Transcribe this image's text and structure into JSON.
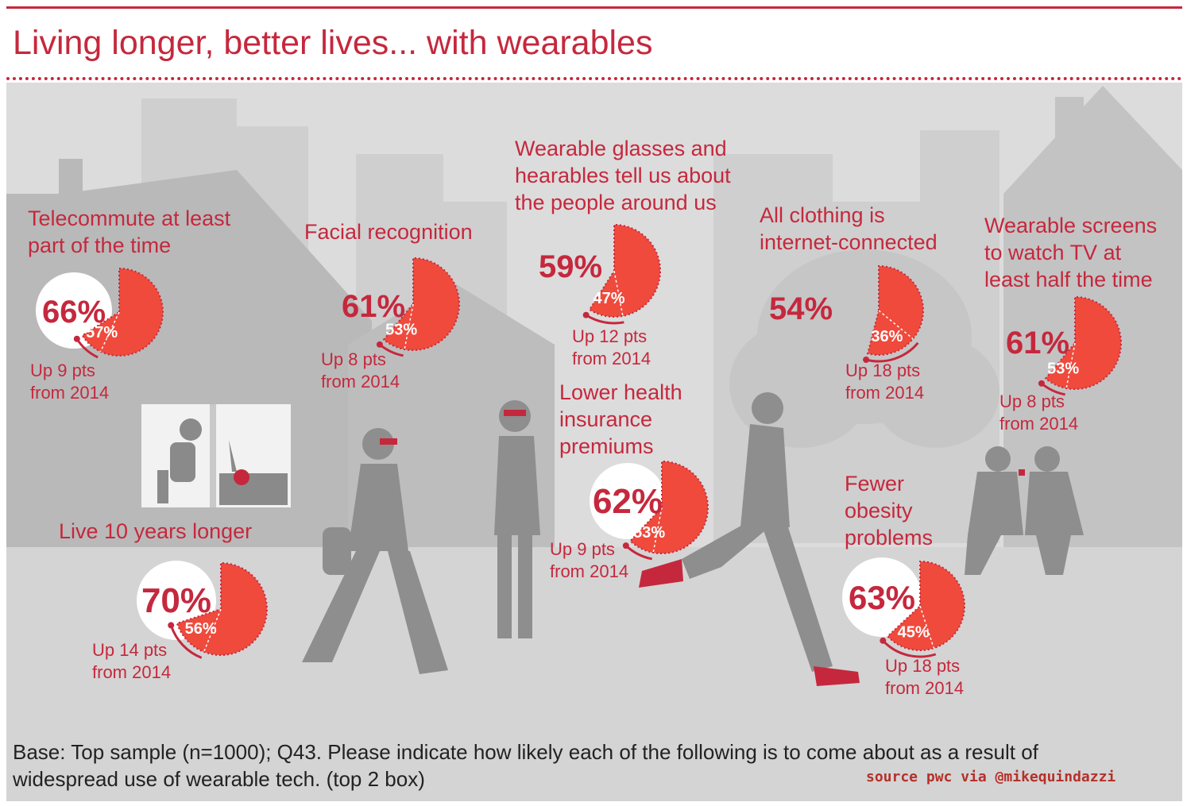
{
  "title": "Living longer, better lives... with wearables",
  "footnote": "Base: Top sample (n=1000); Q43. Please indicate how likely each of the following is to come about as a result of\nwidespread use of wearable tech. (top 2 box)",
  "source": "source pwc via @mikequindazzi",
  "colors": {
    "brand_red": "#c5283d",
    "pie_fill": "#ef4a3c",
    "background": "#dcdcdc",
    "silhouette": "#8e8e8e"
  },
  "chart_data": {
    "type": "pie",
    "comparison_year": "2014",
    "items": [
      {
        "label": "Telecommute at least\npart of the time",
        "current": 66,
        "previous": 57,
        "change_text": "Up 9 pts\nfrom 2014"
      },
      {
        "label": "Facial recognition",
        "current": 61,
        "previous": 53,
        "change_text": "Up 8 pts\nfrom 2014"
      },
      {
        "label": "Wearable glasses and\nhearables tell us about\nthe people around us",
        "current": 59,
        "previous": 47,
        "change_text": "Up 12 pts\nfrom 2014"
      },
      {
        "label": "All clothing is\ninternet-connected",
        "current": 54,
        "previous": 36,
        "change_text": "Up 18 pts\nfrom 2014"
      },
      {
        "label": "Wearable screens\nto watch TV at\nleast half the time",
        "current": 61,
        "previous": 53,
        "change_text": "Up 8 pts\nfrom 2014"
      },
      {
        "label": "Live 10 years longer",
        "current": 70,
        "previous": 56,
        "change_text": "Up 14 pts\nfrom 2014"
      },
      {
        "label": "Lower health\ninsurance\npremiums",
        "current": 62,
        "previous": 53,
        "change_text": "Up 9 pts\nfrom 2014"
      },
      {
        "label": "Fewer\nobesity\nproblems",
        "current": 63,
        "previous": 45,
        "change_text": "Up 18 pts\nfrom 2014"
      }
    ]
  }
}
